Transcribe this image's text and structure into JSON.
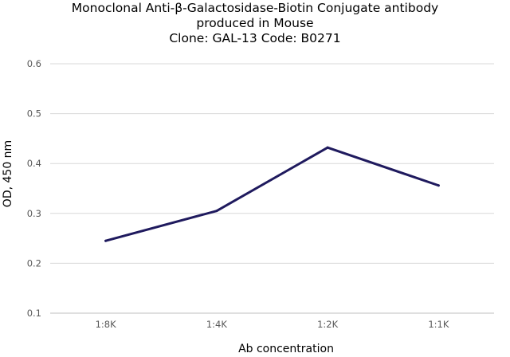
{
  "title_lines": [
    "Monoclonal Anti-β-Galactosidase-Biotin Conjugate antibody",
    "produced in Mouse",
    "Clone: GAL-13   Code: B0271"
  ],
  "chart_data": {
    "type": "line",
    "categories": [
      "1:8K",
      "1:4K",
      "1:2K",
      "1:1K"
    ],
    "series": [
      {
        "values": [
          0.245,
          0.305,
          0.432,
          0.356
        ]
      }
    ],
    "xlabel": "Ab concentration",
    "ylabel": "OD, 450 nm",
    "ylim": [
      0.1,
      0.6
    ],
    "yticks": [
      0.1,
      0.2,
      0.3,
      0.4,
      0.5,
      0.6
    ],
    "ytick_labels": [
      "0.1",
      "0.2",
      "0.3",
      "0.4",
      "0.5",
      "0.6"
    ],
    "grid": true,
    "line_color": "#1f1a5e"
  }
}
